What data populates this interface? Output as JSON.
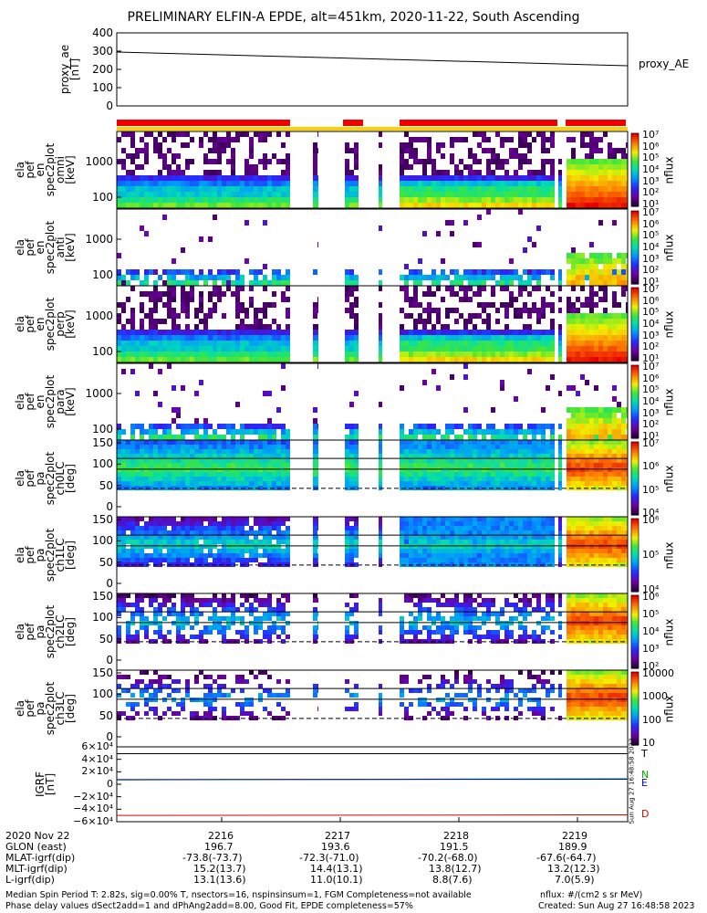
{
  "title": "PRELIMINARY ELFIN-A EPDE, alt=451km, 2020-11-22, South Ascending",
  "colors": {
    "red_bar": "#ee0000",
    "yellow_bar": "#ffd000",
    "igrf_green": "#00aa00",
    "igrf_blue": "#0000cc",
    "igrf_red": "#dd0000",
    "frame": "#000000"
  },
  "stamp": "Sun Aug 27 16:48:58 2023",
  "chart_data": [
    {
      "type": "line",
      "title": "",
      "ylabel": "proxy_ae\n[nT]",
      "ylim": [
        0,
        400
      ],
      "yticks": [
        "400",
        "300",
        "200",
        "100",
        "0"
      ],
      "series": [
        {
          "name": "proxy_AE",
          "x_min": [
            0,
            6.2
          ],
          "values": [
            295,
            220
          ]
        }
      ]
    },
    {
      "type": "heatmap",
      "panels": [
        {
          "ylabel": "ela\npef\nen\nspec2plot\nomni\n[keV]",
          "yticks": [
            "1000",
            "100"
          ],
          "colorbar": [
            "10⁷",
            "10⁶",
            "10⁵",
            "10⁴",
            "10³",
            "10²",
            "10¹"
          ],
          "cblabel": "nflux"
        },
        {
          "ylabel": "ela\npef\nen\nspec2plot\nanti\n[keV]",
          "yticks": [
            "1000",
            "100"
          ],
          "colorbar": [
            "10⁷",
            "10⁶",
            "10⁵",
            "10⁴",
            "10³",
            "10²",
            "10¹"
          ],
          "cblabel": "nflux"
        },
        {
          "ylabel": "ela\npef\nen\nspec2plot\nperp\n[keV]",
          "yticks": [
            "1000",
            "100"
          ],
          "colorbar": [
            "10⁷",
            "10⁶",
            "10⁵",
            "10⁴",
            "10³",
            "10²",
            "10¹"
          ],
          "cblabel": "nflux"
        },
        {
          "ylabel": "ela\npef\nen\nspec2plot\npara\n[keV]",
          "yticks": [
            "1000",
            "100"
          ],
          "colorbar": [
            "10⁷",
            "10⁶",
            "10⁵",
            "10⁴",
            "10³",
            "10²",
            "10¹"
          ],
          "cblabel": "nflux"
        },
        {
          "ylabel": "ela\npef\npa\nspec2plot\nch0LC\n[deg]",
          "yticks": [
            "150",
            "100",
            "50",
            "0"
          ],
          "colorbar": [
            "10⁷",
            "10⁶",
            "10⁵",
            "10⁴"
          ],
          "cblabel": "nflux"
        },
        {
          "ylabel": "ela\npef\npa\nspec2plot\nch1LC\n[deg]",
          "yticks": [
            "150",
            "100",
            "50",
            "0"
          ],
          "colorbar": [
            "10⁶",
            "10⁵",
            "10⁴"
          ],
          "cblabel": "nflux"
        },
        {
          "ylabel": "ela\npef\npa\nspec2plot\nch2LC\n[deg]",
          "yticks": [
            "150",
            "100",
            "50",
            "0"
          ],
          "colorbar": [
            "10⁶",
            "10⁵",
            "10⁴",
            "10³",
            "10²"
          ],
          "cblabel": "nflux"
        },
        {
          "ylabel": "ela\npef\npa\nspec2plot\nch3LC\n[deg]",
          "yticks": [
            "150",
            "100",
            "50",
            "0"
          ],
          "colorbar": [
            "10000",
            "1000",
            "100",
            "10"
          ],
          "cblabel": "nflux"
        }
      ]
    },
    {
      "type": "line",
      "title": "",
      "ylabel": "IGRF\n[nT]",
      "ylim": [
        -60000,
        60000
      ],
      "yticks": [
        "6×10⁴",
        "4×10⁴",
        "2×10⁴",
        "0",
        "−2×10⁴",
        "−4×10⁴",
        "−6×10⁴"
      ],
      "series": [
        {
          "name": "T",
          "values": [
            49000,
            49000
          ]
        },
        {
          "name": "N",
          "values": [
            7000,
            9000
          ]
        },
        {
          "name": "E",
          "values": [
            7500,
            8000
          ]
        },
        {
          "name": "D",
          "values": [
            -50000,
            -49000
          ]
        }
      ]
    }
  ],
  "footer": {
    "rows": [
      {
        "label": "2020 Nov 22",
        "vals": [
          "2216",
          "2217",
          "2218",
          "2219"
        ]
      },
      {
        "label": "GLON (east)",
        "vals": [
          "196.7",
          "193.6",
          "191.5",
          "189.9"
        ]
      },
      {
        "label": "MLAT-igrf(dip)",
        "vals": [
          "-73.8(-73.7)",
          "-72.3(-71.0)",
          "-70.2(-68.0)",
          "-67.6(-64.7)"
        ]
      },
      {
        "label": "MLT-igrf(dip)",
        "vals": [
          "15.2(13.7)",
          "14.4(13.1)",
          "13.8(12.7)",
          "13.2(12.3)"
        ]
      },
      {
        "label": "L-igrf(dip)",
        "vals": [
          "13.1(13.6)",
          "11.0(10.1)",
          "8.8(7.6)",
          "7.0(5.9)"
        ]
      }
    ],
    "note1": "Median Spin Period T: 2.82s, sig=0.00% T, nsectors=16, nspinsinsum=1, FGM Completeness=not available",
    "note2": "Phase delay values dSect2add=1 and dPhAng2add=8.00, Good Fit, EPDE completeness=57%",
    "units": "nflux: #/(cm2 s sr MeV)",
    "created": "Created: Sun Aug 27 16:48:58 2023"
  }
}
